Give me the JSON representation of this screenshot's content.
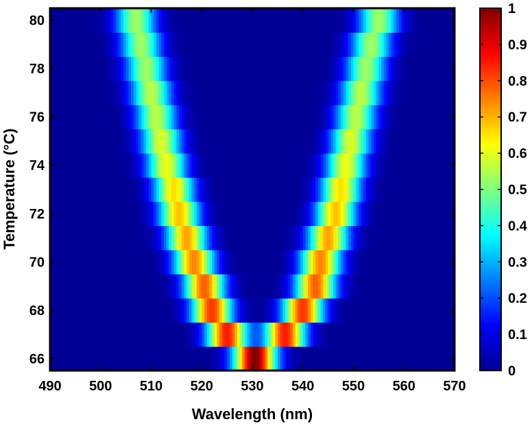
{
  "chart_data": {
    "type": "heatmap",
    "xlabel": "Wavelength (nm)",
    "ylabel": "Temperature (°C)",
    "xlim": [
      490,
      570
    ],
    "ylim": [
      65.5,
      80.5
    ],
    "xticks": [
      490,
      500,
      510,
      520,
      530,
      540,
      550,
      560,
      570
    ],
    "yticks": [
      66,
      68,
      70,
      72,
      74,
      76,
      78,
      80
    ],
    "colorbar": {
      "colormap": "jet",
      "range": [
        0,
        1
      ],
      "ticks": [
        0,
        0.1,
        0.2,
        0.3,
        0.4,
        0.5,
        0.6,
        0.7,
        0.8,
        0.9,
        1
      ]
    },
    "temperatures": [
      66,
      67,
      68,
      69,
      70,
      71,
      72,
      73,
      74,
      75,
      76,
      77,
      78,
      79,
      80
    ],
    "peaks": [
      {
        "temperature": 66,
        "left_nm": 530.5,
        "right_nm": 530.5,
        "amplitude": 1.0
      },
      {
        "temperature": 67,
        "left_nm": 525.0,
        "right_nm": 536.5,
        "amplitude": 0.85
      },
      {
        "temperature": 68,
        "left_nm": 522.0,
        "right_nm": 540.0,
        "amplitude": 0.82
      },
      {
        "temperature": 69,
        "left_nm": 520.5,
        "right_nm": 542.5,
        "amplitude": 0.78
      },
      {
        "temperature": 70,
        "left_nm": 518.5,
        "right_nm": 543.5,
        "amplitude": 0.74
      },
      {
        "temperature": 71,
        "left_nm": 517.0,
        "right_nm": 545.0,
        "amplitude": 0.71
      },
      {
        "temperature": 72,
        "left_nm": 515.5,
        "right_nm": 546.5,
        "amplitude": 0.68
      },
      {
        "temperature": 73,
        "left_nm": 514.5,
        "right_nm": 547.5,
        "amplitude": 0.65
      },
      {
        "temperature": 74,
        "left_nm": 513.0,
        "right_nm": 548.5,
        "amplitude": 0.6
      },
      {
        "temperature": 75,
        "left_nm": 512.0,
        "right_nm": 549.5,
        "amplitude": 0.58
      },
      {
        "temperature": 76,
        "left_nm": 511.0,
        "right_nm": 550.5,
        "amplitude": 0.55
      },
      {
        "temperature": 77,
        "left_nm": 510.0,
        "right_nm": 551.5,
        "amplitude": 0.55
      },
      {
        "temperature": 78,
        "left_nm": 509.0,
        "right_nm": 552.5,
        "amplitude": 0.52
      },
      {
        "temperature": 79,
        "left_nm": 508.0,
        "right_nm": 553.5,
        "amplitude": 0.52
      },
      {
        "temperature": 80,
        "left_nm": 507.0,
        "right_nm": 555.0,
        "amplitude": 0.52
      }
    ],
    "peak_fwhm_nm": 6.5,
    "grid": false
  }
}
